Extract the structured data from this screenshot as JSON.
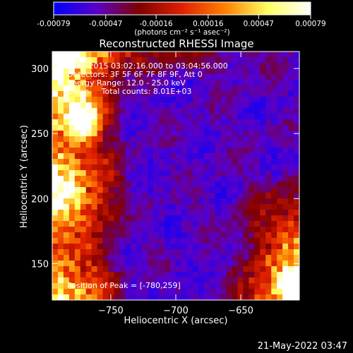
{
  "colorbar": {
    "ticks": [
      "-0.00079",
      "-0.00047",
      "-0.00016",
      "0.00016",
      "0.00047",
      "0.00079"
    ],
    "tick_values": [
      -0.00079,
      -0.00047,
      -0.00016,
      0.00016,
      0.00047,
      0.00079
    ],
    "range": [
      -0.00079,
      0.00079
    ],
    "units": "(photons cm⁻² s⁻¹ asec⁻²)",
    "colors": [
      "#0000ff",
      "#5a00c8",
      "#800000",
      "#e02000",
      "#ff8000",
      "#ffff60",
      "#ffffff"
    ]
  },
  "chart_data": {
    "type": "heatmap",
    "title": "Reconstructed RHESSI Image",
    "xlabel": "Heliocentric X (arcsec)",
    "ylabel": "Heliocentric Y (arcsec)",
    "xlim": [
      -795,
      -605
    ],
    "ylim": [
      122,
      313
    ],
    "xticks": [
      -750,
      -700,
      -650
    ],
    "yticks": [
      150,
      200,
      250,
      300
    ],
    "annotations": [
      "8-May-2015 03:02:16.000 to 03:04:56.000",
      "Detectors: 3F 5F 6F 7F 8F 9F, Att 0",
      "Energy Range: 12.0 - 25.0 keV",
      "Clean     Total counts: 8.01E+03"
    ],
    "peak_label": "Position of Peak = [-780,259]",
    "peak": [
      -780,
      259
    ]
  },
  "footer": "21-May-2022 03:47"
}
